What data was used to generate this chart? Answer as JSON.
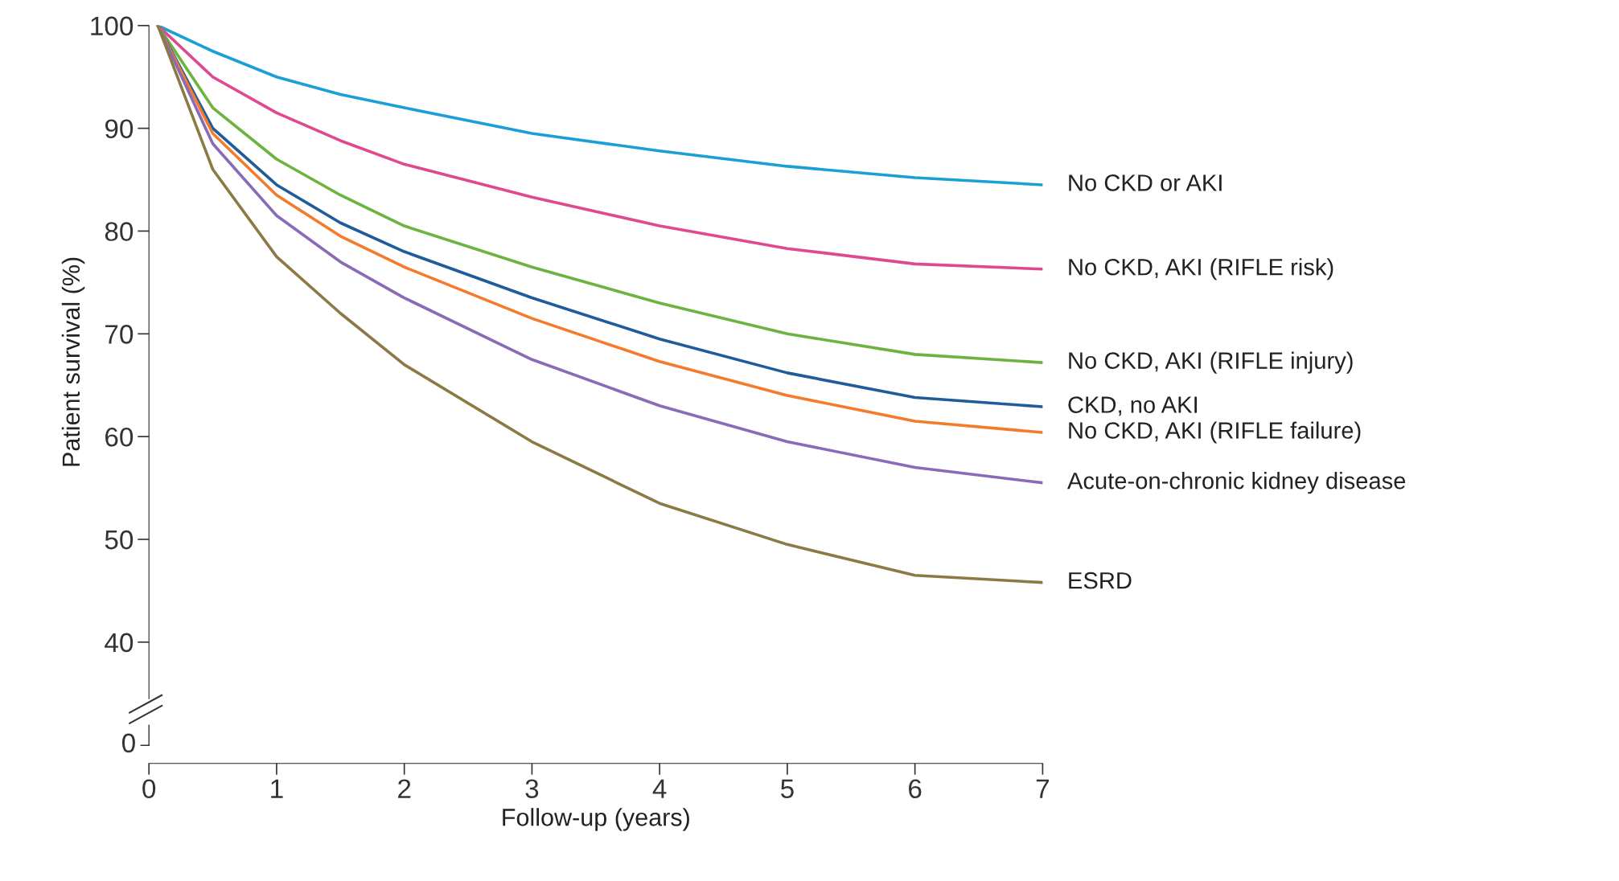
{
  "chart_data": {
    "type": "line",
    "xlabel": "Follow-up (years)",
    "ylabel": "Patient survival (%)",
    "xlim": [
      0,
      7
    ],
    "xticks": [
      0,
      1,
      2,
      3,
      4,
      5,
      6,
      7
    ],
    "ylim": [
      34.5,
      100
    ],
    "yticks": [
      40,
      50,
      60,
      70,
      80,
      90,
      100
    ],
    "grid": false,
    "legend": false,
    "marker": "none",
    "line_style": "solid",
    "annotations": [
      "0"
    ],
    "x": [
      0.07,
      0.5,
      1,
      1.5,
      2,
      3,
      4,
      5,
      6,
      7
    ],
    "series": [
      {
        "name": "No CKD or AKI",
        "color": "#1aa0d6",
        "values": [
          100,
          97.5,
          95,
          93.3,
          92,
          89.5,
          87.8,
          86.3,
          85.2,
          84.5
        ]
      },
      {
        "name": "No CKD, AKI (RIFLE risk)",
        "color": "#e0488f",
        "values": [
          100,
          95,
          91.5,
          88.8,
          86.5,
          83.3,
          80.5,
          78.3,
          76.8,
          76.3
        ]
      },
      {
        "name": "No CKD, AKI (RIFLE injury)",
        "color": "#6cb33f",
        "values": [
          100,
          92,
          87,
          83.5,
          80.5,
          76.5,
          73,
          70,
          68,
          67.2
        ]
      },
      {
        "name": "CKD, no AKI",
        "color": "#1f5c99",
        "values": [
          100,
          90,
          84.5,
          80.8,
          78,
          73.5,
          69.5,
          66.2,
          63.8,
          62.9
        ]
      },
      {
        "name": "No CKD, AKI (RIFLE failure)",
        "color": "#f47b2b",
        "values": [
          100,
          89.5,
          83.5,
          79.5,
          76.5,
          71.5,
          67.3,
          64,
          61.5,
          60.4
        ]
      },
      {
        "name": "Acute-on-chronic kidney disease",
        "color": "#8a6bb8",
        "values": [
          100,
          88.5,
          81.5,
          77,
          73.5,
          67.5,
          63,
          59.5,
          57,
          55.5
        ]
      },
      {
        "name": "ESRD",
        "color": "#8c7a45",
        "values": [
          100,
          86,
          77.5,
          72,
          67,
          59.5,
          53.5,
          49.5,
          46.5,
          45.8
        ]
      }
    ]
  }
}
